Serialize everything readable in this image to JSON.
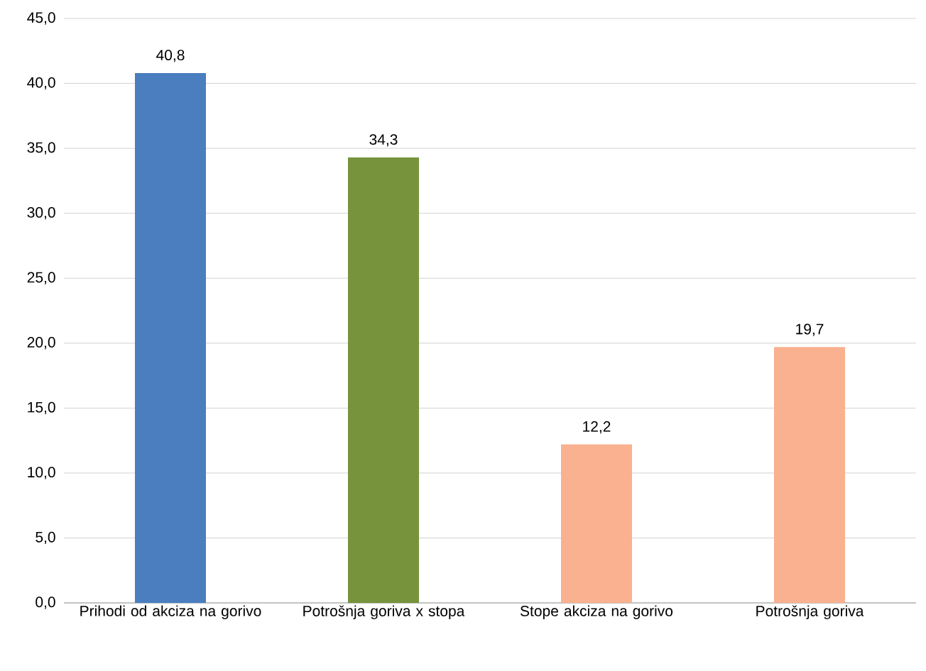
{
  "chart_data": {
    "type": "bar",
    "categories": [
      "Prihodi od akciza na gorivo",
      "Potrošnja goriva x stopa",
      "Stope akciza na gorivo",
      "Potrošnja goriva"
    ],
    "values": [
      40.8,
      34.3,
      12.2,
      19.7
    ],
    "colors": [
      "#4a7ebf",
      "#77933c",
      "#f9b18f",
      "#f9b18f"
    ],
    "value_labels": [
      "40,8",
      "34,3",
      "12,2",
      "19,7"
    ],
    "ylim": [
      0,
      45
    ],
    "yticks": [
      {
        "value": 0,
        "label": "0,0"
      },
      {
        "value": 5,
        "label": "5,0"
      },
      {
        "value": 10,
        "label": "10,0"
      },
      {
        "value": 15,
        "label": "15,0"
      },
      {
        "value": 20,
        "label": "20,0"
      },
      {
        "value": 25,
        "label": "25,0"
      },
      {
        "value": 30,
        "label": "30,0"
      },
      {
        "value": 35,
        "label": "35,0"
      },
      {
        "value": 40,
        "label": "40,0"
      },
      {
        "value": 45,
        "label": "45,0"
      }
    ],
    "grid": "y"
  }
}
